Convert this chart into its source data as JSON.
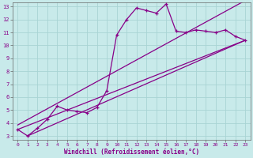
{
  "xlabel": "Windchill (Refroidissement éolien,°C)",
  "bg_color": "#c8eaea",
  "grid_color": "#a8d4d4",
  "line_color": "#880088",
  "text_color": "#880088",
  "xlim": [
    -0.5,
    23.5
  ],
  "ylim": [
    2.7,
    13.3
  ],
  "xticks": [
    0,
    1,
    2,
    3,
    4,
    5,
    6,
    7,
    8,
    9,
    10,
    11,
    12,
    13,
    14,
    15,
    16,
    17,
    18,
    19,
    20,
    21,
    22,
    23
  ],
  "yticks": [
    3,
    4,
    5,
    6,
    7,
    8,
    9,
    10,
    11,
    12,
    13
  ],
  "main_x": [
    0,
    1,
    2,
    3,
    4,
    5,
    6,
    7,
    8,
    9,
    10,
    11,
    12,
    13,
    14,
    15,
    16,
    17,
    18,
    19,
    20,
    21,
    22,
    23
  ],
  "main_y": [
    3.5,
    3.0,
    3.6,
    4.3,
    5.3,
    5.0,
    4.9,
    4.8,
    5.2,
    6.5,
    10.8,
    12.0,
    12.9,
    12.7,
    12.5,
    13.2,
    11.1,
    11.0,
    11.2,
    11.1,
    11.0,
    11.2,
    10.7,
    10.4
  ],
  "trend1_x": [
    0,
    23
  ],
  "trend1_y": [
    3.5,
    10.4
  ],
  "trend2_x": [
    0,
    23
  ],
  "trend2_y": [
    3.5,
    10.4
  ],
  "trend3_x": [
    0,
    23
  ],
  "trend3_y": [
    3.0,
    10.4
  ]
}
